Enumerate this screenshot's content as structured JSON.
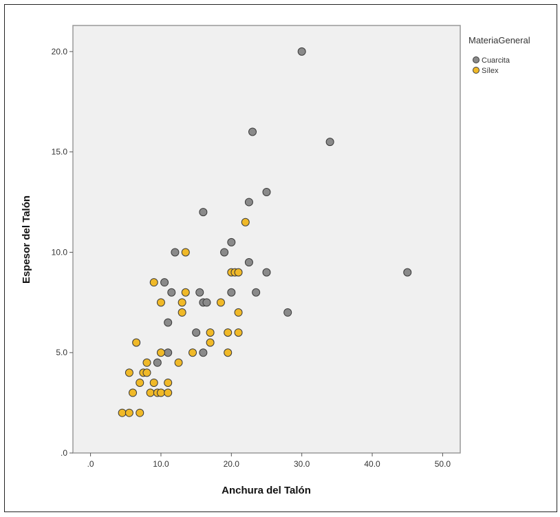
{
  "chart_data": {
    "type": "scatter",
    "xlabel": "Anchura del Talón",
    "ylabel": "Espesor del Talón",
    "xlim": [
      -2.5,
      52.5
    ],
    "ylim": [
      0,
      21.3
    ],
    "x_ticks": [
      {
        "value": 0,
        "label": ".0"
      },
      {
        "value": 10,
        "label": "10.0"
      },
      {
        "value": 20,
        "label": "20.0"
      },
      {
        "value": 30,
        "label": "30.0"
      },
      {
        "value": 40,
        "label": "40.0"
      },
      {
        "value": 50,
        "label": "50.0"
      }
    ],
    "y_ticks": [
      {
        "value": 0,
        "label": ".0"
      },
      {
        "value": 5,
        "label": "5.0"
      },
      {
        "value": 10,
        "label": "10.0"
      },
      {
        "value": 15,
        "label": "15.0"
      },
      {
        "value": 20,
        "label": "20.0"
      }
    ],
    "grid": false,
    "legend": {
      "title": "MateriaGeneral",
      "position": "right-top"
    },
    "series": [
      {
        "name": "Cuarcita",
        "color": "#8a8a8a",
        "points": [
          [
            30,
            20
          ],
          [
            23,
            16
          ],
          [
            34,
            15.5
          ],
          [
            25,
            13
          ],
          [
            22.5,
            12.5
          ],
          [
            16,
            12
          ],
          [
            20,
            10.5
          ],
          [
            19,
            10
          ],
          [
            12,
            10
          ],
          [
            22.5,
            9.5
          ],
          [
            25,
            9
          ],
          [
            45,
            9
          ],
          [
            10.5,
            8.5
          ],
          [
            11.5,
            8
          ],
          [
            15.5,
            8
          ],
          [
            20,
            8
          ],
          [
            23.5,
            8
          ],
          [
            16,
            7.5
          ],
          [
            16.5,
            7.5
          ],
          [
            28,
            7
          ],
          [
            11,
            6.5
          ],
          [
            15,
            6
          ],
          [
            11,
            5
          ],
          [
            16,
            5
          ],
          [
            9.5,
            4.5
          ]
        ]
      },
      {
        "name": "Sílex",
        "color": "#f0b928",
        "points": [
          [
            22,
            11.5
          ],
          [
            13.5,
            10
          ],
          [
            20,
            9
          ],
          [
            20.5,
            9
          ],
          [
            21,
            9
          ],
          [
            9,
            8.5
          ],
          [
            13.5,
            8
          ],
          [
            10,
            7.5
          ],
          [
            13,
            7.5
          ],
          [
            18.5,
            7.5
          ],
          [
            13,
            7
          ],
          [
            21,
            7
          ],
          [
            17,
            6
          ],
          [
            19.5,
            6
          ],
          [
            21,
            6
          ],
          [
            6.5,
            5.5
          ],
          [
            17,
            5.5
          ],
          [
            10,
            5
          ],
          [
            14.5,
            5
          ],
          [
            19.5,
            5
          ],
          [
            8,
            4.5
          ],
          [
            12.5,
            4.5
          ],
          [
            5.5,
            4
          ],
          [
            7.5,
            4
          ],
          [
            8,
            4
          ],
          [
            7,
            3.5
          ],
          [
            9,
            3.5
          ],
          [
            11,
            3.5
          ],
          [
            6,
            3
          ],
          [
            8.5,
            3
          ],
          [
            9.5,
            3
          ],
          [
            10,
            3
          ],
          [
            11,
            3
          ],
          [
            4.5,
            2
          ],
          [
            5.5,
            2
          ],
          [
            7,
            2
          ]
        ]
      }
    ]
  }
}
